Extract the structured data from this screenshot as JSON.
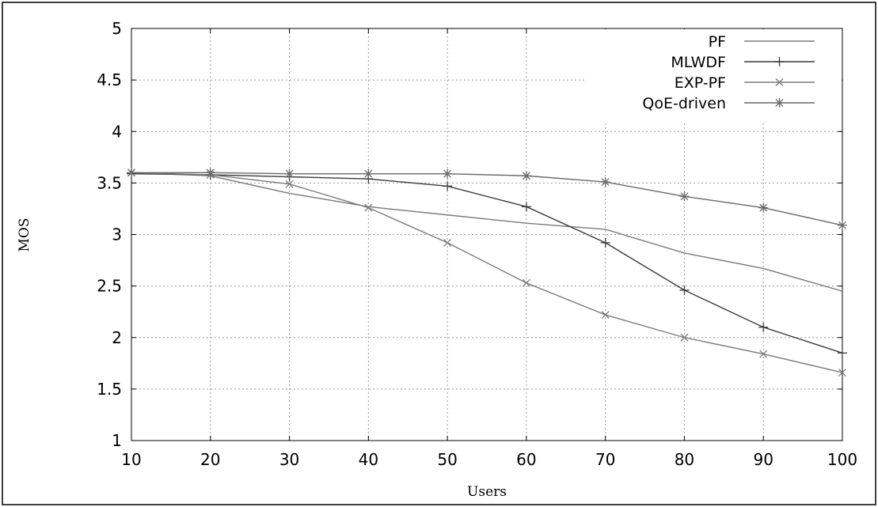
{
  "chart_data": {
    "type": "line",
    "title": "",
    "xlabel": "Users",
    "ylabel": "MOS",
    "x": [
      10,
      20,
      30,
      40,
      50,
      60,
      70,
      80,
      90,
      100
    ],
    "xticks": [
      "10",
      "20",
      "30",
      "40",
      "50",
      "60",
      "70",
      "80",
      "90",
      "100"
    ],
    "yticks": [
      "1",
      "1.5",
      "2",
      "2.5",
      "3",
      "3.5",
      "4",
      "4.5",
      "5"
    ],
    "xlim": [
      10,
      100
    ],
    "ylim": [
      1,
      5
    ],
    "grid": true,
    "legend_position": "top-right",
    "series": [
      {
        "name": "PF",
        "marker": "none",
        "color": "#7a7a7a",
        "values": [
          3.6,
          3.57,
          3.4,
          3.27,
          3.19,
          3.11,
          3.05,
          2.82,
          2.67,
          2.45
        ]
      },
      {
        "name": "MLWDF",
        "marker": "plus",
        "color": "#3a3a3a",
        "values": [
          3.59,
          3.58,
          3.56,
          3.54,
          3.47,
          3.27,
          2.92,
          2.46,
          2.1,
          1.85
        ]
      },
      {
        "name": "EXP-PF",
        "marker": "cross",
        "color": "#7a7a7a",
        "values": [
          3.6,
          3.58,
          3.49,
          3.26,
          2.92,
          2.53,
          2.22,
          2.0,
          1.84,
          1.66
        ]
      },
      {
        "name": "QoE-driven",
        "marker": "star",
        "color": "#6a6a6a",
        "values": [
          3.6,
          3.6,
          3.59,
          3.59,
          3.59,
          3.57,
          3.51,
          3.37,
          3.26,
          3.09
        ]
      }
    ]
  }
}
